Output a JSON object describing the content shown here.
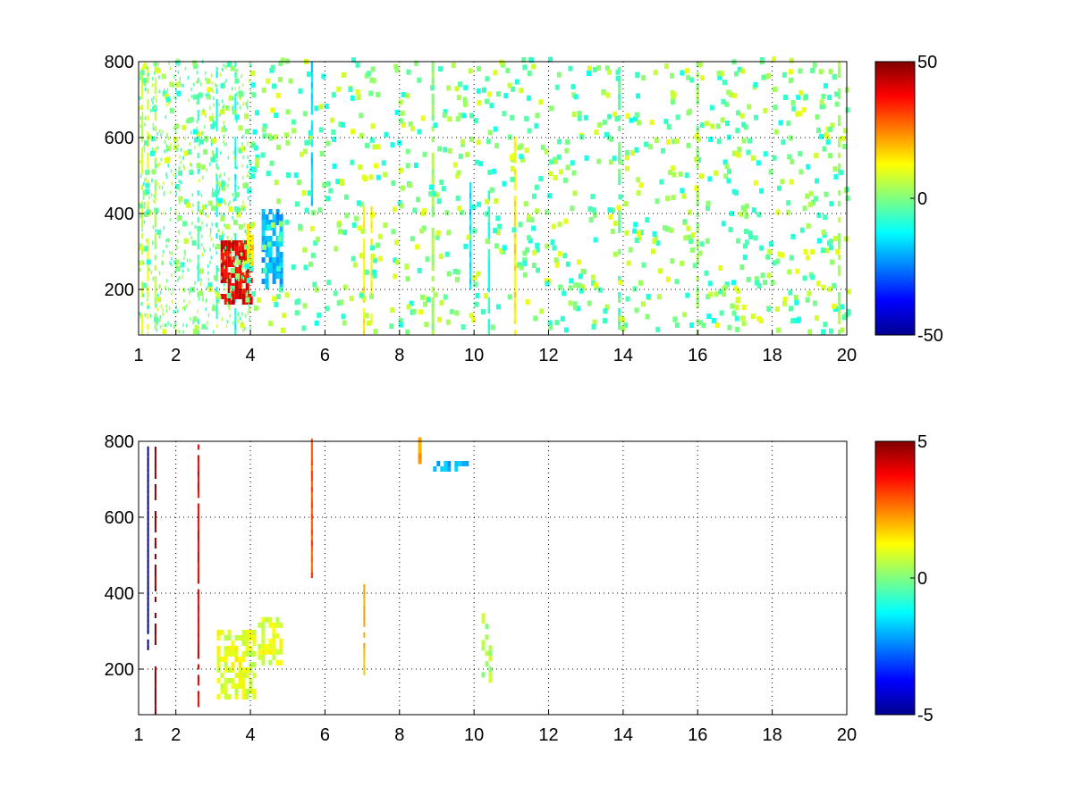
{
  "chart_data": [
    {
      "type": "heatmap",
      "title": "",
      "xlabel": "",
      "ylabel": "",
      "xlim": [
        1,
        20
      ],
      "ylim": [
        80,
        800
      ],
      "x_ticks": [
        1,
        2,
        4,
        6,
        8,
        10,
        12,
        14,
        16,
        18,
        20
      ],
      "y_ticks": [
        200,
        400,
        600,
        800
      ],
      "grid": true,
      "colormap": "jet",
      "colorbar": {
        "range": [
          -50,
          50
        ],
        "ticks": [
          50,
          0,
          -50
        ]
      },
      "features": [
        {
          "kind": "streak",
          "x": 1.1,
          "y": [
            80,
            800
          ],
          "value": 8,
          "width": 0.05,
          "density": 0.7
        },
        {
          "kind": "streak",
          "x": 1.25,
          "y": [
            80,
            800
          ],
          "value": 10,
          "width": 0.05,
          "density": 0.6
        },
        {
          "kind": "streak",
          "x": 1.45,
          "y": [
            80,
            800
          ],
          "value": 4,
          "width": 0.05,
          "density": 0.6
        },
        {
          "kind": "streak",
          "x": 2.6,
          "y": [
            80,
            800
          ],
          "value": -6,
          "width": 0.05,
          "density": 0.6
        },
        {
          "kind": "streak",
          "x": 3.1,
          "y": [
            80,
            800
          ],
          "value": -10,
          "width": 0.05,
          "density": 0.6
        },
        {
          "kind": "streak",
          "x": 3.6,
          "y": [
            80,
            800
          ],
          "value": -12,
          "width": 0.05,
          "density": 0.5
        },
        {
          "kind": "streak",
          "x": 5.65,
          "y": [
            420,
            800
          ],
          "value": -16,
          "width": 0.05,
          "density": 0.9
        },
        {
          "kind": "streak",
          "x": 7.05,
          "y": [
            80,
            430
          ],
          "value": 14,
          "width": 0.05,
          "density": 0.9
        },
        {
          "kind": "streak",
          "x": 7.25,
          "y": [
            80,
            430
          ],
          "value": 12,
          "width": 0.05,
          "density": 0.8
        },
        {
          "kind": "streak",
          "x": 8.9,
          "y": [
            80,
            800
          ],
          "value": 3,
          "width": 0.08,
          "density": 0.8
        },
        {
          "kind": "streak",
          "x": 9.9,
          "y": [
            200,
            480
          ],
          "value": -14,
          "width": 0.05,
          "density": 0.9
        },
        {
          "kind": "streak",
          "x": 10.4,
          "y": [
            80,
            450
          ],
          "value": -8,
          "width": 0.06,
          "density": 0.8
        },
        {
          "kind": "streak",
          "x": 11.1,
          "y": [
            80,
            600
          ],
          "value": 14,
          "width": 0.06,
          "density": 0.9
        },
        {
          "kind": "streak",
          "x": 13.9,
          "y": [
            80,
            800
          ],
          "value": -4,
          "width": 0.08,
          "density": 0.6
        },
        {
          "kind": "streak",
          "x": 16.0,
          "y": [
            80,
            800
          ],
          "value": 3,
          "width": 0.08,
          "density": 0.6
        },
        {
          "kind": "streak",
          "x": 19.8,
          "y": [
            80,
            800
          ],
          "value": 3,
          "width": 0.08,
          "density": 0.5
        },
        {
          "kind": "blob",
          "x": [
            3.2,
            4.0
          ],
          "y": [
            160,
            320
          ],
          "value": 40,
          "density": 0.85
        },
        {
          "kind": "blob",
          "x": [
            3.9,
            4.0
          ],
          "y": [
            260,
            360
          ],
          "value": 15,
          "density": 0.8
        },
        {
          "kind": "blob",
          "x": [
            4.3,
            4.8
          ],
          "y": [
            200,
            400
          ],
          "value": -20,
          "density": 0.75
        }
      ]
    },
    {
      "type": "heatmap",
      "title": "",
      "xlabel": "",
      "ylabel": "",
      "xlim": [
        1,
        20
      ],
      "ylim": [
        80,
        800
      ],
      "x_ticks": [
        1,
        2,
        4,
        6,
        8,
        10,
        12,
        14,
        16,
        18,
        20
      ],
      "y_ticks": [
        200,
        400,
        600,
        800
      ],
      "grid": true,
      "colormap": "jet",
      "colorbar": {
        "range": [
          -5,
          5
        ],
        "ticks": [
          5,
          0,
          -5
        ]
      },
      "features": [
        {
          "kind": "streak",
          "x": 1.25,
          "y": [
            250,
            780
          ],
          "value": -5,
          "width": 0.04,
          "density": 0.9
        },
        {
          "kind": "streak",
          "x": 1.45,
          "y": [
            80,
            800
          ],
          "value": 5,
          "width": 0.04,
          "density": 0.7
        },
        {
          "kind": "streak",
          "x": 2.6,
          "y": [
            100,
            780
          ],
          "value": 4,
          "width": 0.04,
          "density": 0.8
        },
        {
          "kind": "streak",
          "x": 5.65,
          "y": [
            440,
            800
          ],
          "value": 3,
          "width": 0.05,
          "density": 0.9
        },
        {
          "kind": "streak",
          "x": 7.05,
          "y": [
            170,
            420
          ],
          "value": 2,
          "width": 0.04,
          "density": 0.8
        },
        {
          "kind": "blob",
          "x": [
            3.1,
            4.1
          ],
          "y": [
            120,
            300
          ],
          "value": 1,
          "density": 0.6
        },
        {
          "kind": "blob",
          "x": [
            4.2,
            4.8
          ],
          "y": [
            210,
            330
          ],
          "value": 1,
          "density": 0.6
        },
        {
          "kind": "blob",
          "x": [
            8.5,
            8.55
          ],
          "y": [
            740,
            800
          ],
          "value": 2,
          "density": 0.9
        },
        {
          "kind": "blob",
          "x": [
            8.9,
            9.8
          ],
          "y": [
            720,
            740
          ],
          "value": -2,
          "density": 0.5
        },
        {
          "kind": "blob",
          "x": [
            10.2,
            10.45
          ],
          "y": [
            150,
            350
          ],
          "value": 0.5,
          "density": 0.4
        }
      ]
    }
  ]
}
